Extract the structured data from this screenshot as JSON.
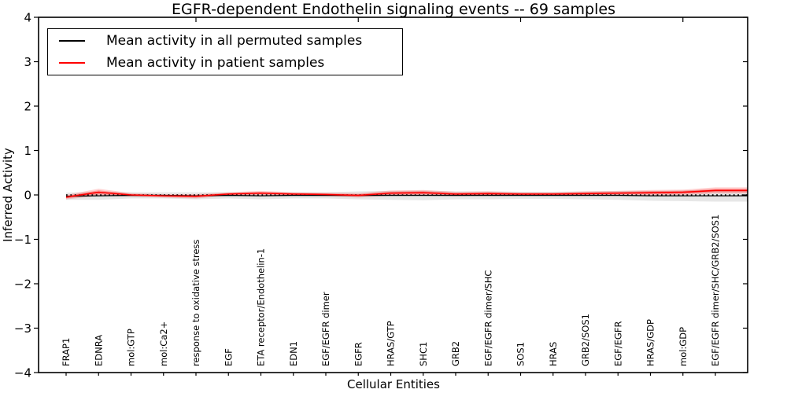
{
  "chart_data": {
    "type": "line",
    "title": "EGFR-dependent Endothelin signaling events -- 69 samples",
    "xlabel": "Cellular Entities",
    "ylabel": "Inferred Activity",
    "ylim": [
      -4,
      4
    ],
    "ytick_values": [
      -4,
      -3,
      -2,
      -1,
      0,
      1,
      2,
      3,
      4
    ],
    "ytick_labels": [
      "−4",
      "−3",
      "−2",
      "−1",
      "0",
      "1",
      "2",
      "3",
      "4"
    ],
    "grid": false,
    "legend_position": "upper left",
    "zero_line": {
      "y": 0,
      "style": "dotted",
      "color": "#000000"
    },
    "categories": [
      "FRAP1",
      "EDNRA",
      "mol:GTP",
      "mol:Ca2+",
      "response to oxidative stress",
      "EGF",
      "ETA receptor/Endothelin-1",
      "EDN1",
      "EGF/EGFR dimer",
      "EGFR",
      "HRAS/GTP",
      "SHC1",
      "GRB2",
      "EGF/EGFR dimer/SHC",
      "SOS1",
      "HRAS",
      "GRB2/SOS1",
      "EGF/EGFR",
      "HRAS/GDP",
      "mol:GDP",
      "EGF/EGFR dimer/SHC/GRB2/SOS1"
    ],
    "series": [
      {
        "name": "Mean activity in all permuted samples",
        "color": "#000000",
        "band_color": "#aaaaaa",
        "values": [
          -0.03,
          -0.02,
          -0.01,
          -0.01,
          -0.02,
          -0.01,
          -0.02,
          -0.01,
          -0.01,
          -0.01,
          -0.01,
          -0.01,
          -0.01,
          -0.01,
          -0.01,
          -0.01,
          -0.01,
          -0.01,
          -0.02,
          -0.02,
          -0.02
        ],
        "band_halfwidth": [
          0.08,
          0.09,
          0.07,
          0.07,
          0.08,
          0.07,
          0.08,
          0.07,
          0.07,
          0.09,
          0.1,
          0.11,
          0.09,
          0.09,
          0.08,
          0.08,
          0.09,
          0.1,
          0.11,
          0.12,
          0.13
        ]
      },
      {
        "name": "Mean activity in patient samples",
        "color": "#ff0000",
        "band_color": "#ff3333",
        "values": [
          -0.05,
          0.06,
          0.0,
          -0.02,
          -0.03,
          0.02,
          0.04,
          0.02,
          0.01,
          -0.01,
          0.04,
          0.05,
          0.02,
          0.03,
          0.02,
          0.02,
          0.03,
          0.04,
          0.05,
          0.06,
          0.1
        ],
        "band_halfwidth": [
          0.05,
          0.08,
          0.04,
          0.04,
          0.05,
          0.04,
          0.05,
          0.04,
          0.04,
          0.05,
          0.06,
          0.06,
          0.05,
          0.05,
          0.04,
          0.04,
          0.05,
          0.05,
          0.06,
          0.06,
          0.07
        ]
      }
    ]
  }
}
